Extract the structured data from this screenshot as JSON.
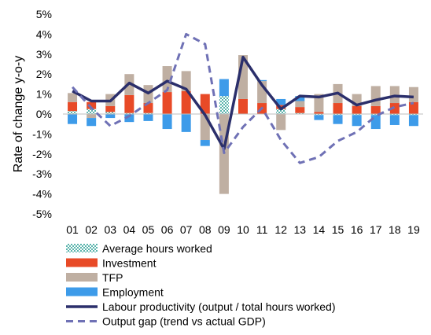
{
  "chart_data": {
    "type": "bar",
    "categories": [
      "01",
      "02",
      "03",
      "04",
      "05",
      "06",
      "07",
      "08",
      "09",
      "10",
      "11",
      "12",
      "13",
      "14",
      "15",
      "16",
      "17",
      "18",
      "19"
    ],
    "ylabel": "Rate of change y-o-y",
    "ylim": [
      -5,
      5
    ],
    "yticks": [
      "-5%",
      "-4%",
      "-3%",
      "-2%",
      "-1%",
      "0%",
      "1%",
      "2%",
      "3%",
      "4%",
      "5%"
    ],
    "stacked_series": [
      {
        "name": "Average hours worked",
        "color": "#5ab4ac",
        "values": [
          0.15,
          0.25,
          0.1,
          0.05,
          0.05,
          0.0,
          0.0,
          0.0,
          0.9,
          0.0,
          0.0,
          0.25,
          0.05,
          -0.05,
          -0.05,
          -0.05,
          -0.05,
          -0.05,
          -0.05
        ]
      },
      {
        "name": "Investment",
        "color": "#e84a27",
        "values": [
          0.45,
          0.35,
          0.3,
          0.9,
          0.5,
          1.1,
          1.15,
          1.0,
          0.0,
          0.75,
          0.55,
          0.2,
          0.3,
          0.1,
          0.55,
          0.4,
          0.4,
          0.55,
          0.6
        ]
      },
      {
        "name": "TFP",
        "color": "#bfafa2",
        "values": [
          0.45,
          -0.2,
          0.6,
          1.05,
          0.9,
          1.3,
          1.0,
          -1.3,
          -4.0,
          2.2,
          1.1,
          -0.8,
          0.3,
          0.9,
          0.95,
          0.6,
          1.0,
          0.85,
          0.75
        ]
      },
      {
        "name": "Employment",
        "color": "#3d9be9",
        "values": [
          -0.5,
          -0.4,
          -0.2,
          -0.4,
          -0.35,
          -0.75,
          -0.9,
          -0.3,
          0.85,
          0.0,
          0.05,
          0.3,
          0.25,
          -0.25,
          -0.45,
          -0.55,
          -0.7,
          -0.5,
          -0.55
        ]
      }
    ],
    "line_series": [
      {
        "name": "Labour productivity (output / total hours worked)",
        "color": "#2b2f6b",
        "style": "solid",
        "values": [
          1.15,
          0.65,
          0.65,
          1.55,
          1.05,
          1.65,
          1.25,
          -0.05,
          -1.75,
          2.85,
          1.45,
          0.25,
          0.9,
          0.85,
          1.05,
          0.45,
          0.7,
          0.9,
          0.85
        ]
      },
      {
        "name": "Output gap (trend vs actual GDP)",
        "color": "#6f71b5",
        "style": "dashed",
        "values": [
          1.35,
          0.3,
          -0.6,
          -0.1,
          0.55,
          1.2,
          4.0,
          3.5,
          -1.95,
          -0.65,
          0.3,
          -1.3,
          -2.45,
          -2.15,
          -1.35,
          -0.9,
          -0.1,
          0.35,
          0.55
        ]
      }
    ],
    "legend": [
      {
        "label": "Average hours worked",
        "kind": "hatch",
        "color": "#5ab4ac"
      },
      {
        "label": "Investment",
        "kind": "box",
        "color": "#e84a27"
      },
      {
        "label": "TFP",
        "kind": "box",
        "color": "#bfafa2"
      },
      {
        "label": "Employment",
        "kind": "box",
        "color": "#3d9be9"
      },
      {
        "label": "Labour productivity (output / total hours worked)",
        "kind": "line",
        "color": "#2b2f6b"
      },
      {
        "label": "Output gap (trend vs actual GDP)",
        "kind": "dash",
        "color": "#6f71b5"
      }
    ],
    "legend_position": "bottom",
    "grid": false
  }
}
